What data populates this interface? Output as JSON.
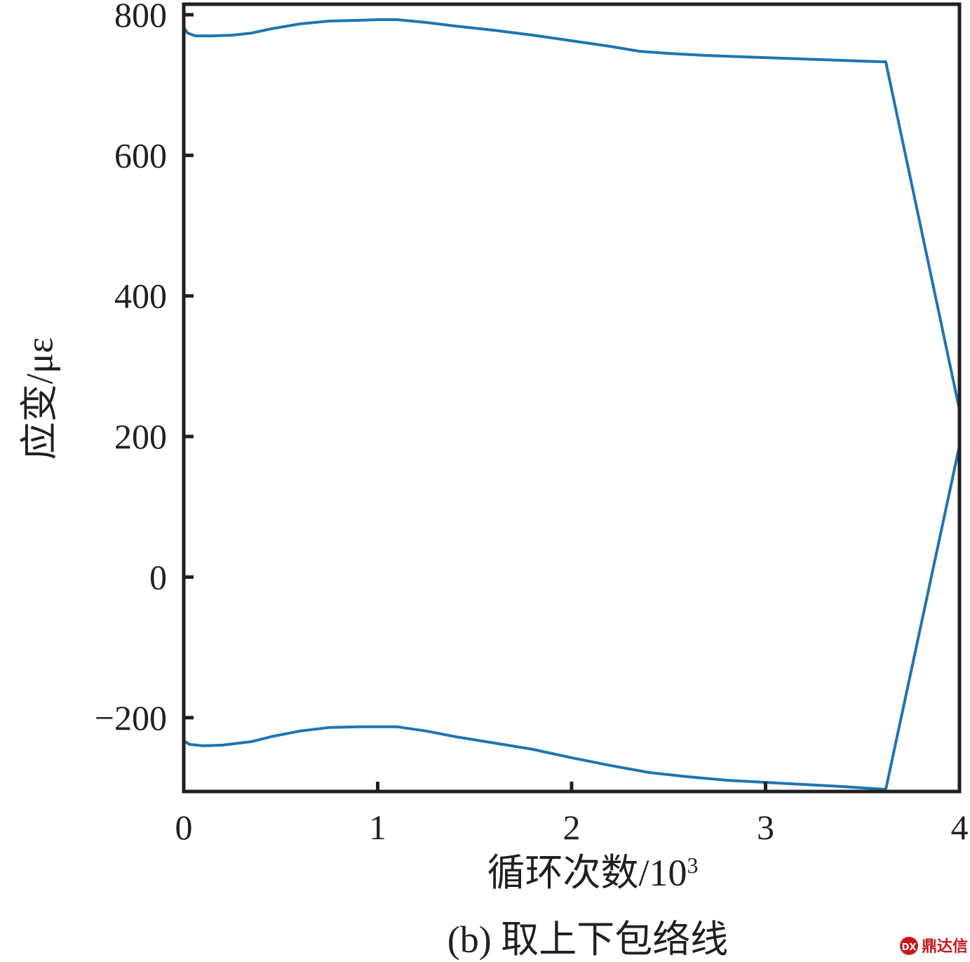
{
  "chart_data": {
    "type": "line",
    "xlabel": "循环次数/10",
    "xlabel_sup": "3",
    "ylabel": "应变/με",
    "caption": "(b) 取上下包络线",
    "xlim": [
      0,
      4
    ],
    "ylim": [
      -305,
      815
    ],
    "x_ticks": [
      0,
      1,
      2,
      3,
      4
    ],
    "y_ticks": [
      -200,
      0,
      200,
      400,
      600,
      800
    ],
    "x_tick_labels": [
      "0",
      "1",
      "2",
      "3",
      "4"
    ],
    "y_tick_labels": [
      "−200",
      "0",
      "200",
      "400",
      "600",
      "800"
    ],
    "grid": false,
    "line_color": "#1f75b3",
    "series": [
      {
        "x": [
          0,
          0.02,
          0.06,
          0.15,
          0.25,
          0.35,
          0.45,
          0.6,
          0.75,
          0.9,
          1.0,
          1.1,
          1.25,
          1.4,
          1.6,
          1.8,
          2.0,
          2.2,
          2.35,
          2.5,
          2.7,
          2.9,
          3.1,
          3.3,
          3.5,
          3.62,
          4.0
        ],
        "y": [
          782,
          774,
          770,
          770,
          771,
          774,
          780,
          787,
          791,
          792,
          793,
          793,
          789,
          784,
          778,
          771,
          763,
          755,
          748,
          745,
          742,
          740,
          738,
          736,
          734,
          733,
          238
        ]
      },
      {
        "x": [
          0,
          0.03,
          0.1,
          0.2,
          0.35,
          0.45,
          0.6,
          0.75,
          0.9,
          1.0,
          1.1,
          1.25,
          1.4,
          1.6,
          1.8,
          2.0,
          2.2,
          2.4,
          2.6,
          2.8,
          3.0,
          3.2,
          3.4,
          3.62,
          4.0
        ],
        "y": [
          -233,
          -238,
          -240,
          -239,
          -234,
          -227,
          -219,
          -214,
          -213,
          -213,
          -213,
          -219,
          -227,
          -236,
          -245,
          -257,
          -268,
          -278,
          -284,
          -289,
          -292,
          -295,
          -298,
          -302,
          187
        ]
      }
    ]
  },
  "watermark": "鼎达信"
}
